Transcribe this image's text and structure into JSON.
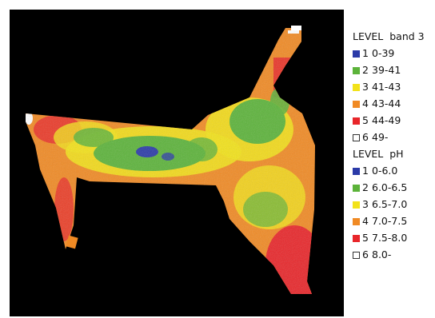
{
  "legend_band": {
    "title": "LEVEL  band 3",
    "items": [
      {
        "level": "1",
        "range": "0-39",
        "color": "#2b3aa8"
      },
      {
        "level": "2",
        "range": "39-41",
        "color": "#5cb33a"
      },
      {
        "level": "3",
        "range": "41-43",
        "color": "#f2e21a"
      },
      {
        "level": "4",
        "range": "43-44",
        "color": "#f08a24"
      },
      {
        "level": "5",
        "range": "44-49",
        "color": "#e8262a"
      },
      {
        "level": "6",
        "range": "49-",
        "color": "#ffffff"
      }
    ]
  },
  "legend_ph": {
    "title": "LEVEL  pH",
    "items": [
      {
        "level": "1",
        "range": "0-6.0",
        "color": "#2b3aa8"
      },
      {
        "level": "2",
        "range": "6.0-6.5",
        "color": "#5cb33a"
      },
      {
        "level": "3",
        "range": "6.5-7.0",
        "color": "#f2e21a"
      },
      {
        "level": "4",
        "range": "7.0-7.5",
        "color": "#f08a24"
      },
      {
        "level": "5",
        "range": "7.5-8.0",
        "color": "#e8262a"
      },
      {
        "level": "6",
        "range": "8.0-",
        "color": "#ffffff"
      }
    ]
  }
}
